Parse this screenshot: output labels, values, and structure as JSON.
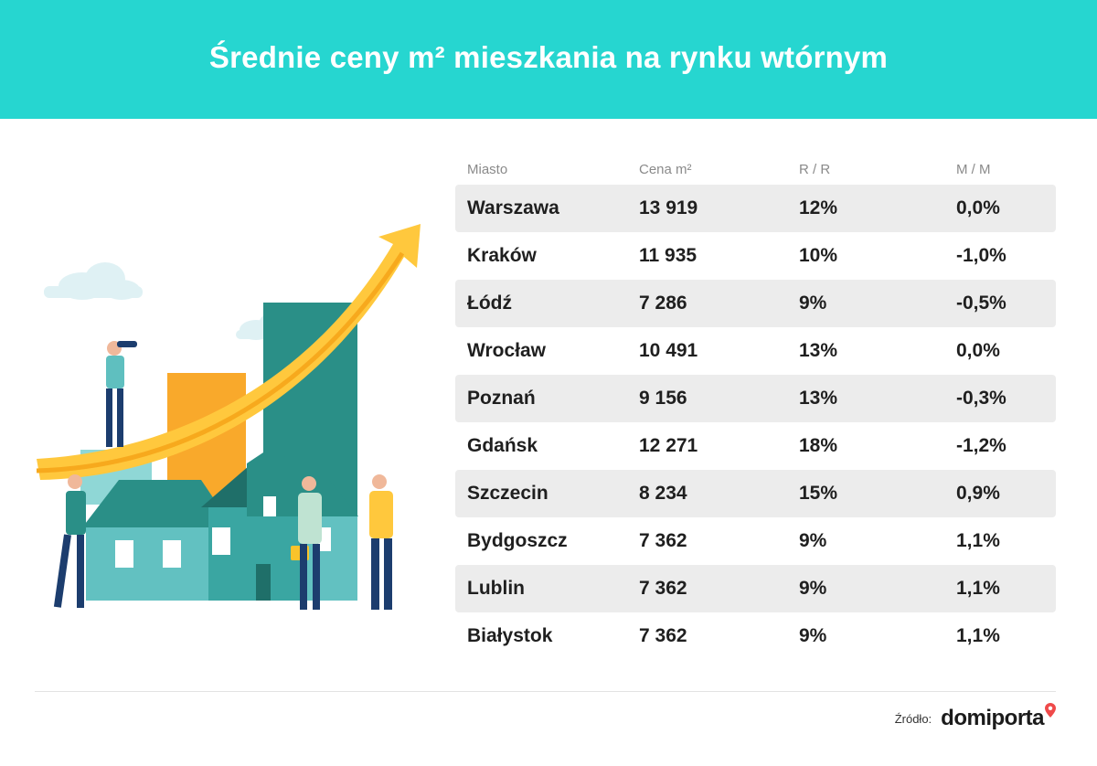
{
  "title": "Średnie ceny m² mieszkania na rynku wtórnym",
  "chart_data": {
    "type": "table",
    "columns": [
      "Miasto",
      "Cena m²",
      "R / R",
      "M / M"
    ],
    "rows": [
      [
        "Warszawa",
        "13 919",
        "12%",
        "0,0%"
      ],
      [
        "Kraków",
        "11 935",
        "10%",
        "-1,0%"
      ],
      [
        "Łódź",
        "7 286",
        "9%",
        "-0,5%"
      ],
      [
        "Wrocław",
        "10 491",
        "13%",
        "0,0%"
      ],
      [
        "Poznań",
        "9 156",
        "13%",
        "-0,3%"
      ],
      [
        "Gdańsk",
        "12 271",
        "18%",
        "-1,2%"
      ],
      [
        "Szczecin",
        "8 234",
        "15%",
        "0,9%"
      ],
      [
        "Bydgoszcz",
        "7 362",
        "9%",
        "1,1%"
      ],
      [
        "Lublin",
        "7 362",
        "9%",
        "1,1%"
      ],
      [
        "Białystok",
        "7 362",
        "9%",
        "1,1%"
      ]
    ]
  },
  "source": {
    "label": "Źródło:",
    "brand": "domiporta"
  },
  "colors": {
    "header": "#26d6d0",
    "row_shade": "#ececec",
    "bar_teal": "#2a8f87",
    "bar_orange": "#f9a92b",
    "arrow": "#ffc83d",
    "house": "#5fbfbf",
    "brand_pin": "#ef4a4a"
  },
  "icons": [
    "growth-arrow-illustration",
    "house-illustration",
    "location-pin-icon"
  ]
}
